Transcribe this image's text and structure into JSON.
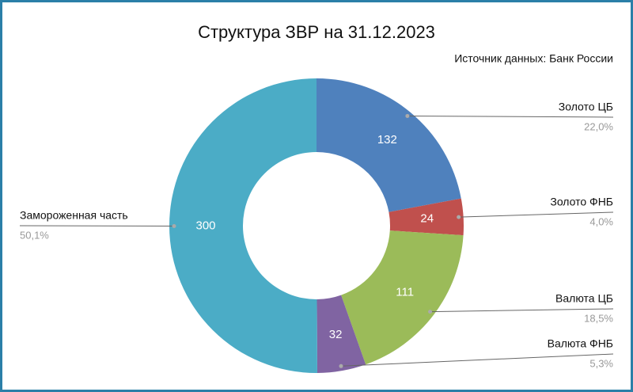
{
  "chart_data": {
    "type": "donut",
    "title": "Структура ЗВР на 31.12.2023",
    "source": "Источник данных: Банк России",
    "categories": [
      "Золото ЦБ",
      "Золото ФНБ",
      "Валюта ЦБ",
      "Валюта ФНБ",
      "Замороженная часть"
    ],
    "values": [
      132,
      24,
      111,
      32,
      300
    ],
    "percent_labels": [
      "22,0%",
      "4,0%",
      "18,5%",
      "5,3%",
      "50,1%"
    ],
    "colors": [
      "#4f81bd",
      "#c0504d",
      "#9bbb59",
      "#8064a2",
      "#4bacc6"
    ]
  }
}
